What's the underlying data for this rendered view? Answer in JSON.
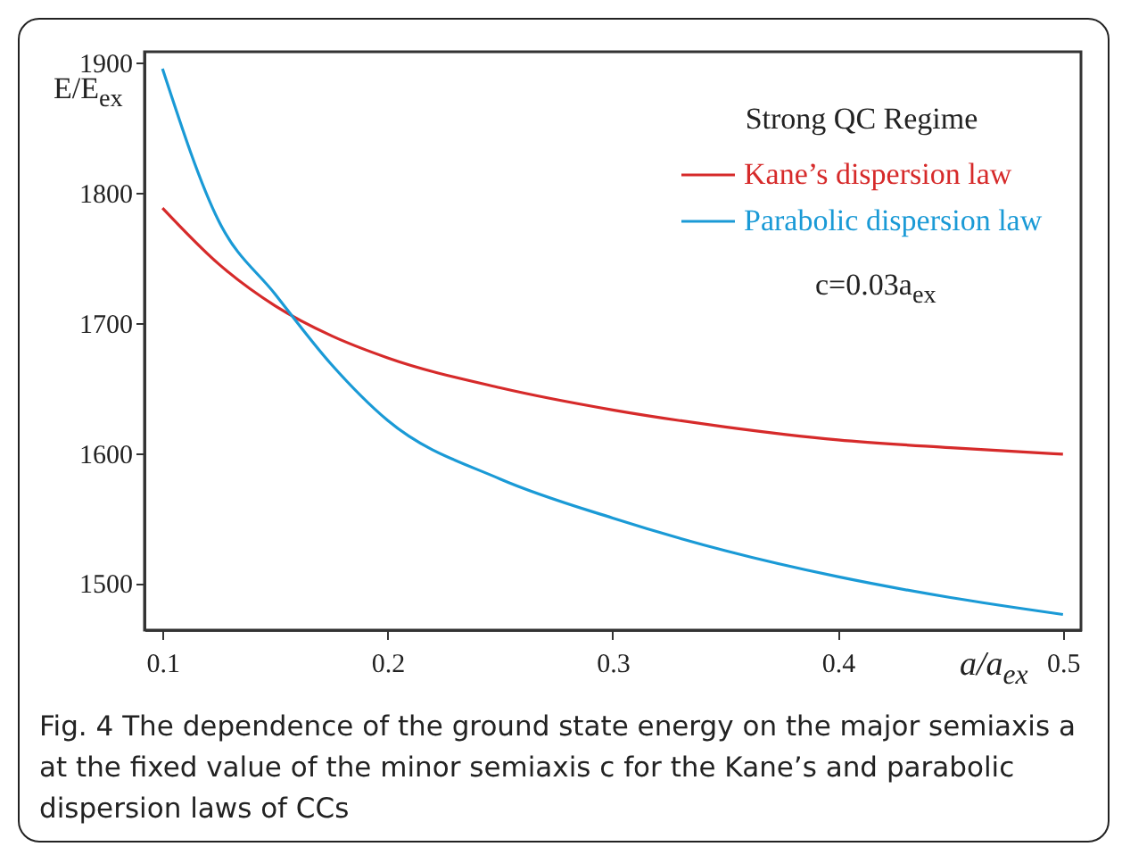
{
  "chart_data": {
    "type": "line",
    "xlabel": "a/a$_{ex}$",
    "ylabel": "E/E$_{ex}$",
    "legend_title": "Strong QC Regime",
    "x": [
      0.1,
      0.125,
      0.15,
      0.175,
      0.2,
      0.25,
      0.3,
      0.35,
      0.4,
      0.45,
      0.5
    ],
    "series": [
      {
        "name": "Kane’s dispersion law",
        "color": "#d62a2a",
        "values": [
          1788,
          1745,
          1713,
          1690,
          1673,
          1650,
          1633,
          1620,
          1610,
          1604,
          1599
        ]
      },
      {
        "name": "Parabolic dispersion law",
        "color": "#1a9ad6",
        "values": [
          1895,
          1778,
          1722,
          1668,
          1625,
          1580,
          1550,
          1525,
          1505,
          1489,
          1476
        ]
      }
    ],
    "xlim": [
      0.092,
      0.508
    ],
    "ylim": [
      1464,
      1908
    ],
    "xticks": [
      0.1,
      0.2,
      0.3,
      0.4,
      0.5
    ],
    "yticks": [
      1500,
      1600,
      1700,
      1800,
      1900
    ],
    "grid": false,
    "legend": "top right",
    "marker": "none",
    "line_style": "solid",
    "annotations": [
      "c=0.03a$_{ex}$",
      "Fig. 4  The dependence of the ground state energy on the major semiaxis a at the fixed value of the minor semiaxis c for the Kane’s and parabolic dispersion laws of CCs"
    ]
  }
}
